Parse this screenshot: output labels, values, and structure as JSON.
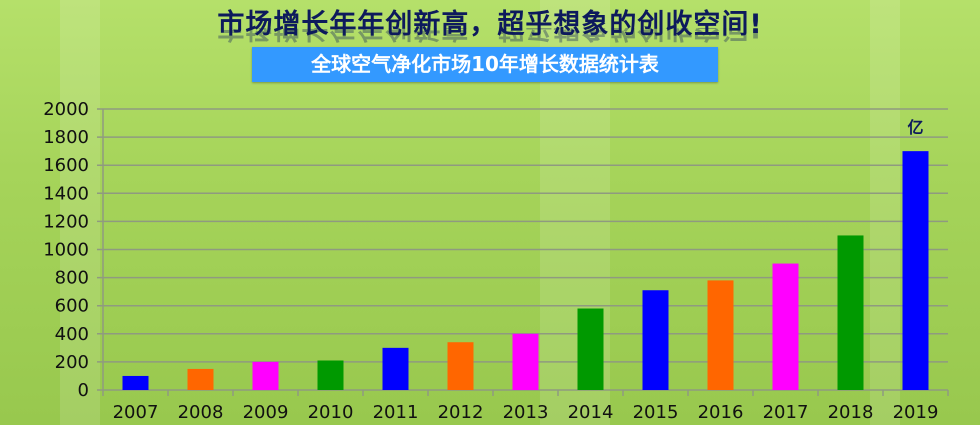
{
  "header": {
    "title": "市场增长年年创新高，超乎想象的创收空间!",
    "subtitle": "全球空气净化市场10年增长数据统计表"
  },
  "chart_data": {
    "type": "bar",
    "title": "全球空气净化市场10年增长数据统计表",
    "categories": [
      "2007",
      "2008",
      "2009",
      "2010",
      "2011",
      "2012",
      "2013",
      "2014",
      "2015",
      "2016",
      "2017",
      "2018",
      "2019"
    ],
    "values": [
      100,
      150,
      200,
      210,
      300,
      340,
      400,
      580,
      710,
      780,
      900,
      1100,
      1700
    ],
    "colors": [
      "#0000ff",
      "#ff6600",
      "#ff00ff",
      "#009900",
      "#0000ff",
      "#ff6600",
      "#ff00ff",
      "#009900",
      "#0000ff",
      "#ff6600",
      "#ff00ff",
      "#009900",
      "#0000ff"
    ],
    "unit_label": "亿",
    "yticks": [
      0,
      200,
      400,
      600,
      800,
      1000,
      1200,
      1400,
      1600,
      1800,
      2000
    ],
    "ylim": [
      0,
      2000
    ],
    "grid": true,
    "xlabel": "",
    "ylabel": ""
  }
}
